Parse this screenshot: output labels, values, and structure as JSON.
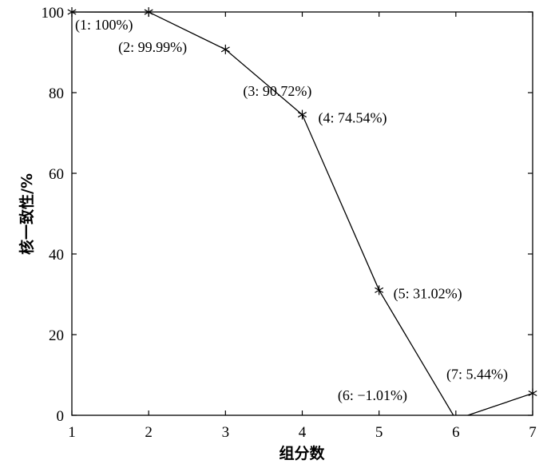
{
  "chart_data": {
    "type": "line",
    "xlabel": "组分数",
    "ylabel": "核一致性/%",
    "xlim": [
      1,
      7
    ],
    "ylim": [
      0,
      100
    ],
    "xticks": [
      "1",
      "2",
      "3",
      "4",
      "5",
      "6",
      "7"
    ],
    "yticks": [
      "0",
      "20",
      "40",
      "60",
      "80",
      "100"
    ],
    "grid": false,
    "series": [
      {
        "x": [
          1,
          2,
          3,
          4,
          5,
          6,
          7
        ],
        "y": [
          100,
          99.99,
          90.72,
          74.54,
          31.02,
          -1.01,
          5.44
        ],
        "marker": "asterisk",
        "color": "#000000"
      }
    ],
    "annotations": [
      "(1: 100%)",
      "(2: 99.99%)",
      "(3: 90.72%)",
      "(4: 74.54%)",
      "(5: 31.02%)",
      "(6: −1.01%)",
      "(7: 5.44%)"
    ]
  }
}
